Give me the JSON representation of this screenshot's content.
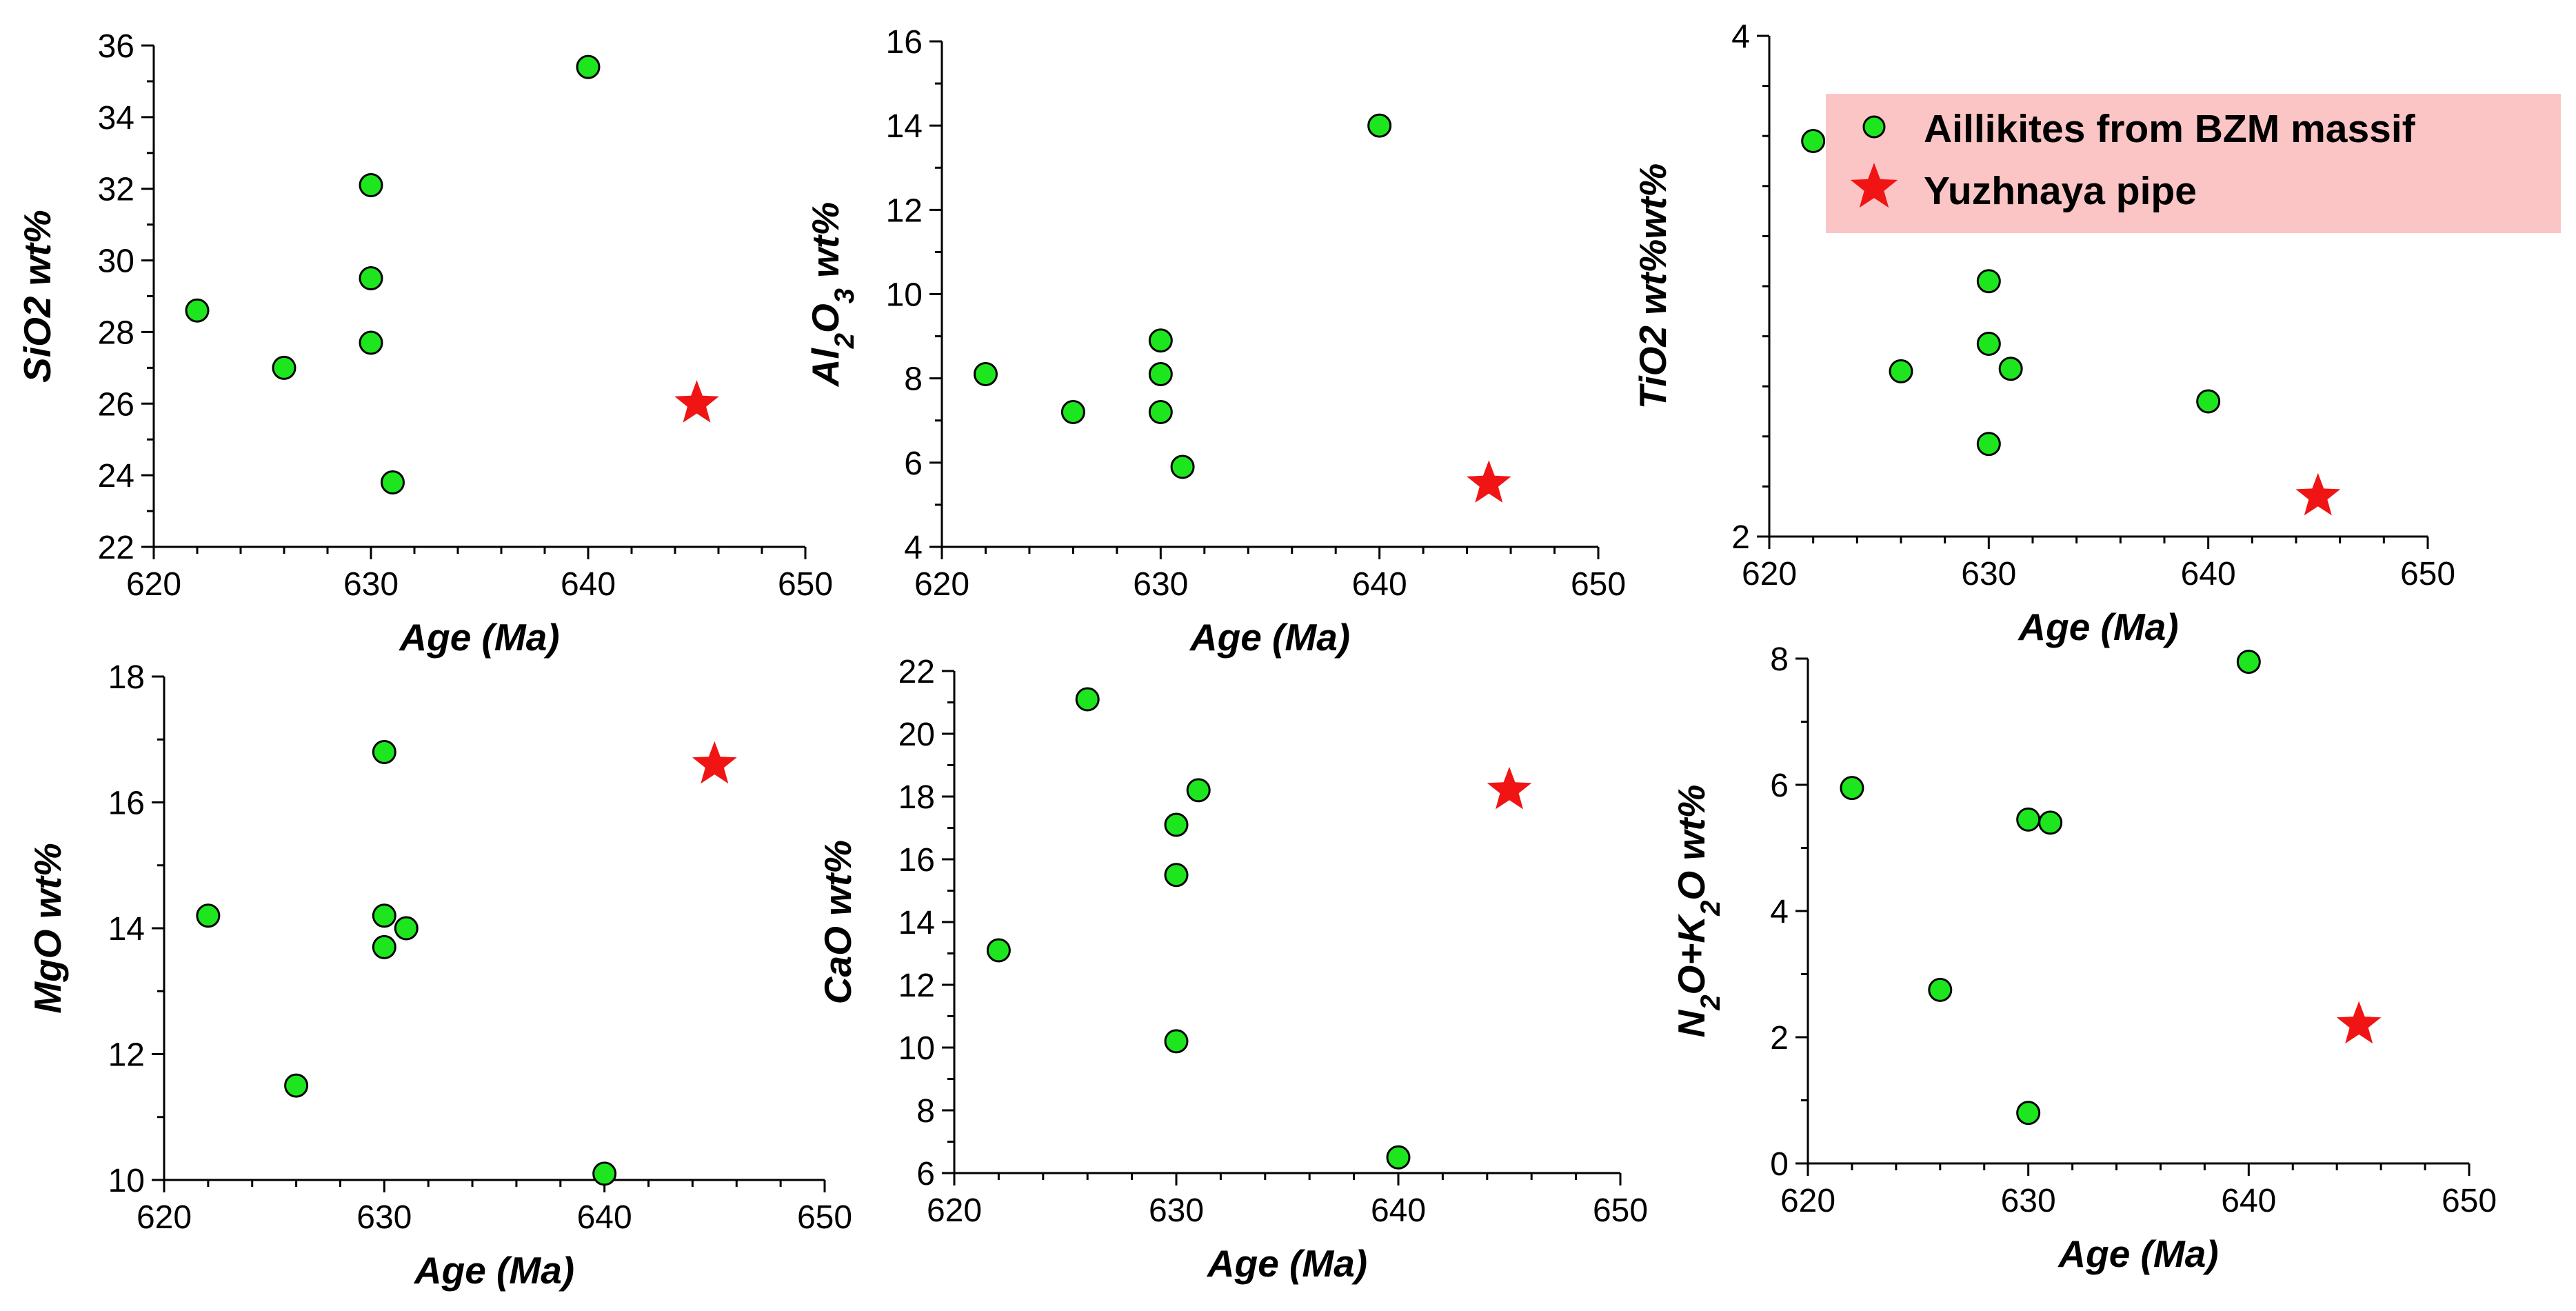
{
  "chart_data": [
    {
      "type": "scatter",
      "id": "sio2",
      "title": "",
      "xlabel": "Age (Ma)",
      "ylabel": "SiO2 wt%",
      "xlim": [
        620,
        650
      ],
      "ylim": [
        22,
        36
      ],
      "xticks": [
        620,
        630,
        640,
        650
      ],
      "yticks": [
        22,
        24,
        26,
        28,
        30,
        32,
        34,
        36
      ],
      "series": [
        {
          "name": "Aillikites from BZM massif",
          "color": "#1ee61e",
          "marker": "circle",
          "points": [
            [
              622,
              28.6
            ],
            [
              626,
              27.0
            ],
            [
              630,
              32.1
            ],
            [
              630,
              29.5
            ],
            [
              630,
              27.7
            ],
            [
              631,
              23.8
            ],
            [
              640,
              35.4
            ]
          ]
        },
        {
          "name": "Yuzhnaya pipe",
          "color": "#f01414",
          "marker": "star",
          "points": [
            [
              645,
              26.0
            ]
          ]
        }
      ]
    },
    {
      "type": "scatter",
      "id": "al2o3",
      "title": "",
      "xlabel": "Age (Ma)",
      "ylabel": "Al2O3 wt%",
      "xlim": [
        620,
        650
      ],
      "ylim": [
        4,
        16
      ],
      "xticks": [
        620,
        630,
        640,
        650
      ],
      "yticks": [
        4,
        6,
        8,
        10,
        12,
        14,
        16
      ],
      "series": [
        {
          "name": "Aillikites from BZM massif",
          "color": "#1ee61e",
          "marker": "circle",
          "points": [
            [
              622,
              8.1
            ],
            [
              626,
              7.2
            ],
            [
              630,
              8.9
            ],
            [
              630,
              8.1
            ],
            [
              630,
              7.2
            ],
            [
              631,
              5.9
            ],
            [
              640,
              14.0
            ]
          ]
        },
        {
          "name": "Yuzhnaya pipe",
          "color": "#f01414",
          "marker": "star",
          "points": [
            [
              645,
              5.5
            ]
          ]
        }
      ]
    },
    {
      "type": "scatter",
      "id": "tio2",
      "title": "",
      "xlabel": "Age (Ma)",
      "ylabel": "TiO2 wt%wt%",
      "xlim": [
        620,
        650
      ],
      "ylim": [
        2,
        4
      ],
      "xticks": [
        620,
        630,
        640,
        650
      ],
      "yticks": [
        2,
        4
      ],
      "series": [
        {
          "name": "Aillikites from BZM massif",
          "color": "#1ee61e",
          "marker": "circle",
          "points": [
            [
              622,
              3.58
            ],
            [
              626,
              2.66
            ],
            [
              630,
              3.02
            ],
            [
              630,
              2.77
            ],
            [
              630,
              2.37
            ],
            [
              631,
              2.67
            ],
            [
              640,
              2.54
            ]
          ]
        },
        {
          "name": "Yuzhnaya pipe",
          "color": "#f01414",
          "marker": "star",
          "points": [
            [
              645,
              2.16
            ]
          ]
        }
      ]
    },
    {
      "type": "scatter",
      "id": "mgo",
      "title": "",
      "xlabel": "Age (Ma)",
      "ylabel": "MgO wt%",
      "xlim": [
        620,
        650
      ],
      "ylim": [
        10,
        18
      ],
      "xticks": [
        620,
        630,
        640,
        650
      ],
      "yticks": [
        10,
        12,
        14,
        16,
        18
      ],
      "series": [
        {
          "name": "Aillikites from BZM massif",
          "color": "#1ee61e",
          "marker": "circle",
          "points": [
            [
              622,
              14.2
            ],
            [
              626,
              11.5
            ],
            [
              630,
              16.8
            ],
            [
              630,
              14.2
            ],
            [
              630,
              13.7
            ],
            [
              631,
              14.0
            ],
            [
              640,
              10.1
            ]
          ]
        },
        {
          "name": "Yuzhnaya pipe",
          "color": "#f01414",
          "marker": "star",
          "points": [
            [
              645,
              16.6
            ]
          ]
        }
      ]
    },
    {
      "type": "scatter",
      "id": "cao",
      "title": "",
      "xlabel": "Age (Ma)",
      "ylabel": "CaO wt%",
      "xlim": [
        620,
        650
      ],
      "ylim": [
        6,
        22
      ],
      "xticks": [
        620,
        630,
        640,
        650
      ],
      "yticks": [
        6,
        8,
        10,
        12,
        14,
        16,
        18,
        20,
        22
      ],
      "series": [
        {
          "name": "Aillikites from BZM massif",
          "color": "#1ee61e",
          "marker": "circle",
          "points": [
            [
              622,
              13.1
            ],
            [
              626,
              21.1
            ],
            [
              630,
              17.1
            ],
            [
              630,
              15.5
            ],
            [
              630,
              10.2
            ],
            [
              631,
              18.2
            ],
            [
              640,
              6.5
            ]
          ]
        },
        {
          "name": "Yuzhnaya pipe",
          "color": "#f01414",
          "marker": "star",
          "points": [
            [
              645,
              18.2
            ]
          ]
        }
      ]
    },
    {
      "type": "scatter",
      "id": "alk",
      "title": "",
      "xlabel": "Age (Ma)",
      "ylabel": "N2O+K2O wt%",
      "xlim": [
        620,
        650
      ],
      "ylim": [
        0,
        8
      ],
      "xticks": [
        620,
        630,
        640,
        650
      ],
      "yticks": [
        0,
        2,
        4,
        6,
        8
      ],
      "series": [
        {
          "name": "Aillikites from BZM massif",
          "color": "#1ee61e",
          "marker": "circle",
          "points": [
            [
              622,
              5.95
            ],
            [
              626,
              2.75
            ],
            [
              630,
              5.45
            ],
            [
              630,
              0.8
            ],
            [
              631,
              5.4
            ],
            [
              640,
              7.95
            ]
          ]
        },
        {
          "name": "Yuzhnaya pipe",
          "color": "#f01414",
          "marker": "star",
          "points": [
            [
              645,
              2.2
            ]
          ]
        }
      ]
    }
  ],
  "legend": {
    "placement": "top-right",
    "background": "#fbc5c5",
    "items": [
      {
        "label": "Aillikites from BZM massif",
        "marker": "circle",
        "color": "#1ee61e"
      },
      {
        "label": "Yuzhnaya pipe",
        "marker": "star",
        "color": "#f01414"
      }
    ]
  }
}
